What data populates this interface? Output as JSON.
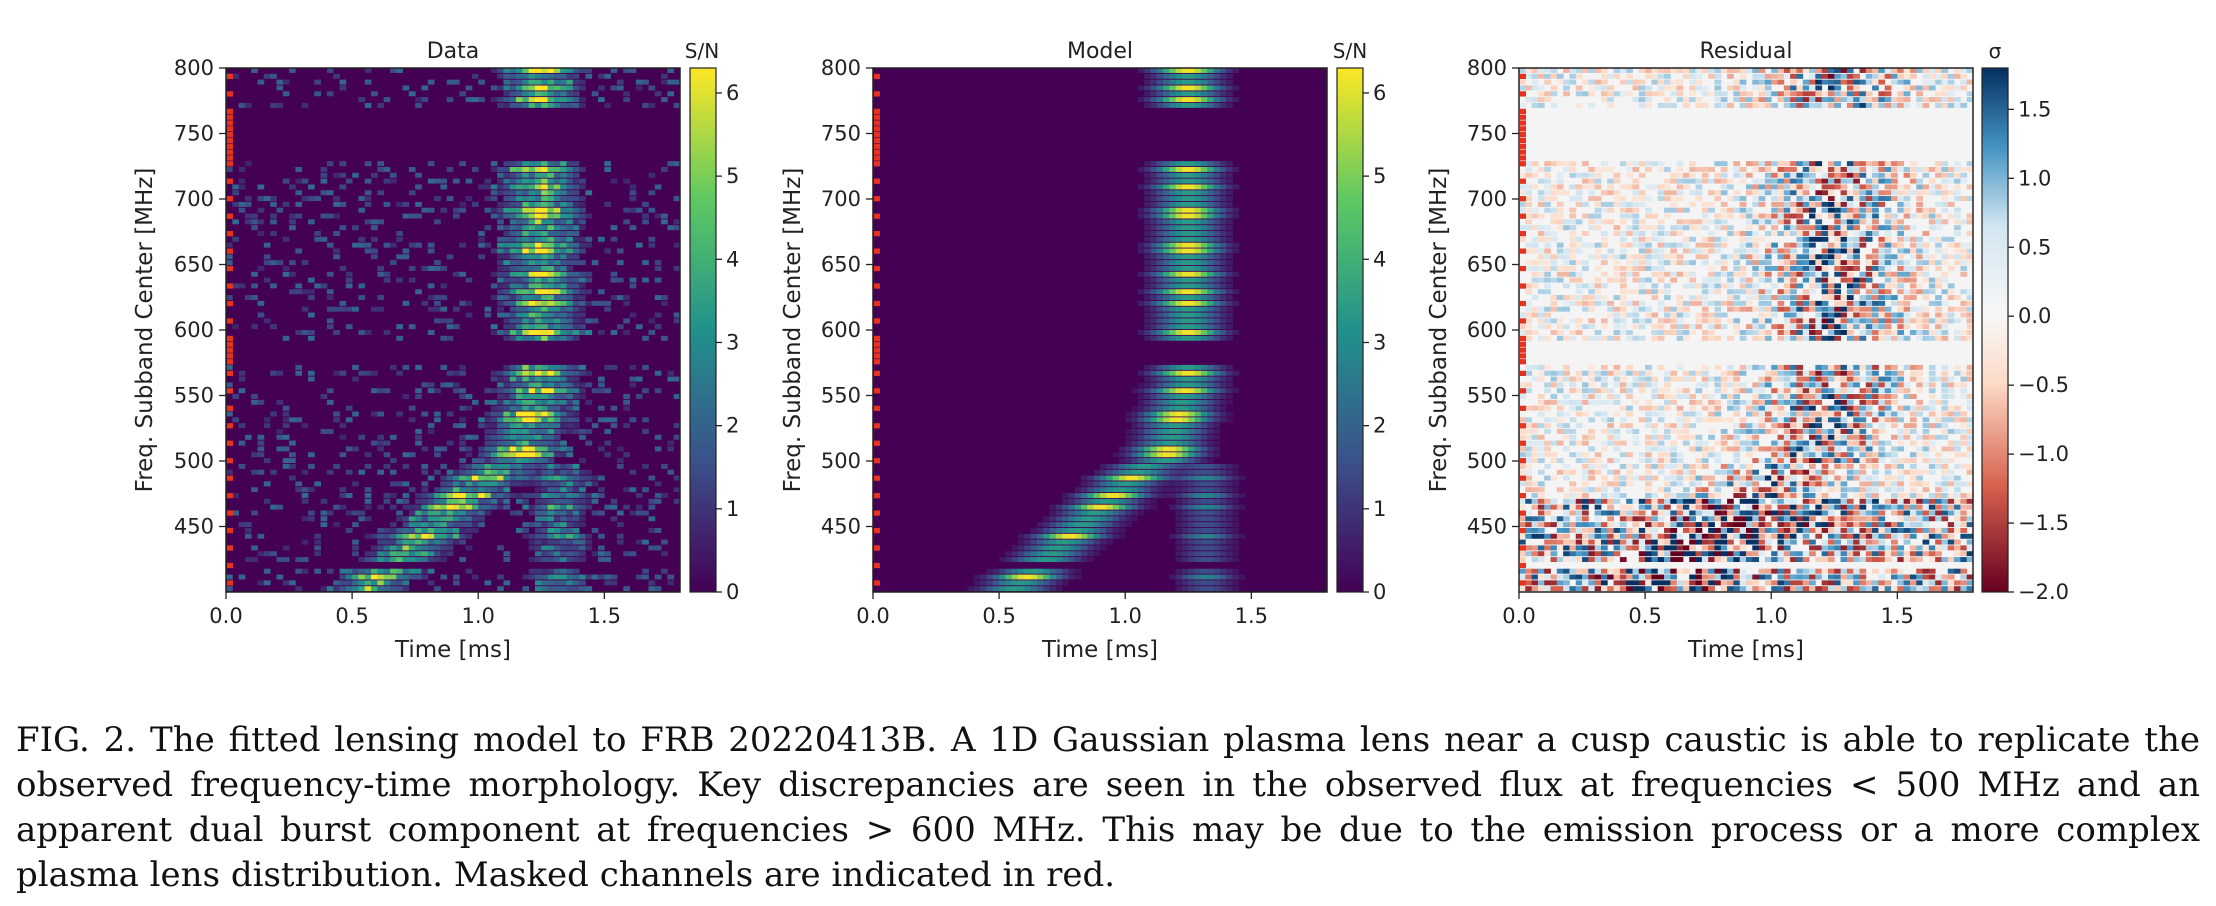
{
  "chart_data": [
    {
      "type": "heatmap",
      "title": "Data",
      "xlabel": "Time [ms]",
      "ylabel": "Freq. Subband Center [MHz]",
      "xlim": [
        0.0,
        1.8
      ],
      "ylim": [
        400,
        800
      ],
      "xticks": [
        "0.0",
        "0.5",
        "1.0",
        "1.5"
      ],
      "yticks": [
        "450",
        "500",
        "550",
        "600",
        "650",
        "700",
        "750",
        "800"
      ],
      "colorbar": {
        "label": "S/N",
        "colormap": "viridis",
        "range": [
          0,
          6.3
        ],
        "ticks": [
          "0",
          "1",
          "2",
          "3",
          "4",
          "5",
          "6"
        ]
      },
      "description_values": {
        "high_freq_burst_center_ms": 1.25,
        "low_freq_burst_center_ms": 0.8
      }
    },
    {
      "type": "heatmap",
      "title": "Model",
      "xlabel": "Time [ms]",
      "ylabel": "Freq. Subband Center [MHz]",
      "xlim": [
        0.0,
        1.8
      ],
      "ylim": [
        400,
        800
      ],
      "xticks": [
        "0.0",
        "0.5",
        "1.0",
        "1.5"
      ],
      "yticks": [
        "450",
        "500",
        "550",
        "600",
        "650",
        "700",
        "750",
        "800"
      ],
      "colorbar": {
        "label": "S/N",
        "colormap": "viridis",
        "range": [
          0,
          6.3
        ],
        "ticks": [
          "0",
          "1",
          "2",
          "3",
          "4",
          "5",
          "6"
        ]
      }
    },
    {
      "type": "heatmap",
      "title": "Residual",
      "xlabel": "Time [ms]",
      "ylabel": "Freq. Subband Center [MHz]",
      "xlim": [
        0.0,
        1.8
      ],
      "ylim": [
        400,
        800
      ],
      "xticks": [
        "0.0",
        "0.5",
        "1.0",
        "1.5"
      ],
      "yticks": [
        "450",
        "500",
        "550",
        "600",
        "650",
        "700",
        "750",
        "800"
      ],
      "colorbar": {
        "label": "σ",
        "colormap": "RdBu",
        "range": [
          -2.0,
          1.8
        ],
        "ticks": [
          "1.5",
          "1.0",
          "0.5",
          "0.0",
          "−0.5",
          "−1.0",
          "−1.5",
          "−2.0"
        ]
      }
    }
  ],
  "masked_ranges_mhz": [
    [
      730,
      768
    ],
    [
      572,
      590
    ],
    [
      420,
      423
    ]
  ],
  "mask_color": "#e8321e",
  "caption": {
    "label": "FIG. 2.",
    "text": "The fitted lensing model to FRB 20220413B. A 1D Gaussian plasma lens near a cusp caustic is able to replicate the observed frequency-time morphology. Key discrepancies are seen in the observed flux at frequencies < 500 MHz and an apparent dual burst component at frequencies > 600 MHz. This may be due to the emission process or a more complex plasma lens distribution. Masked channels are indicated in red."
  }
}
